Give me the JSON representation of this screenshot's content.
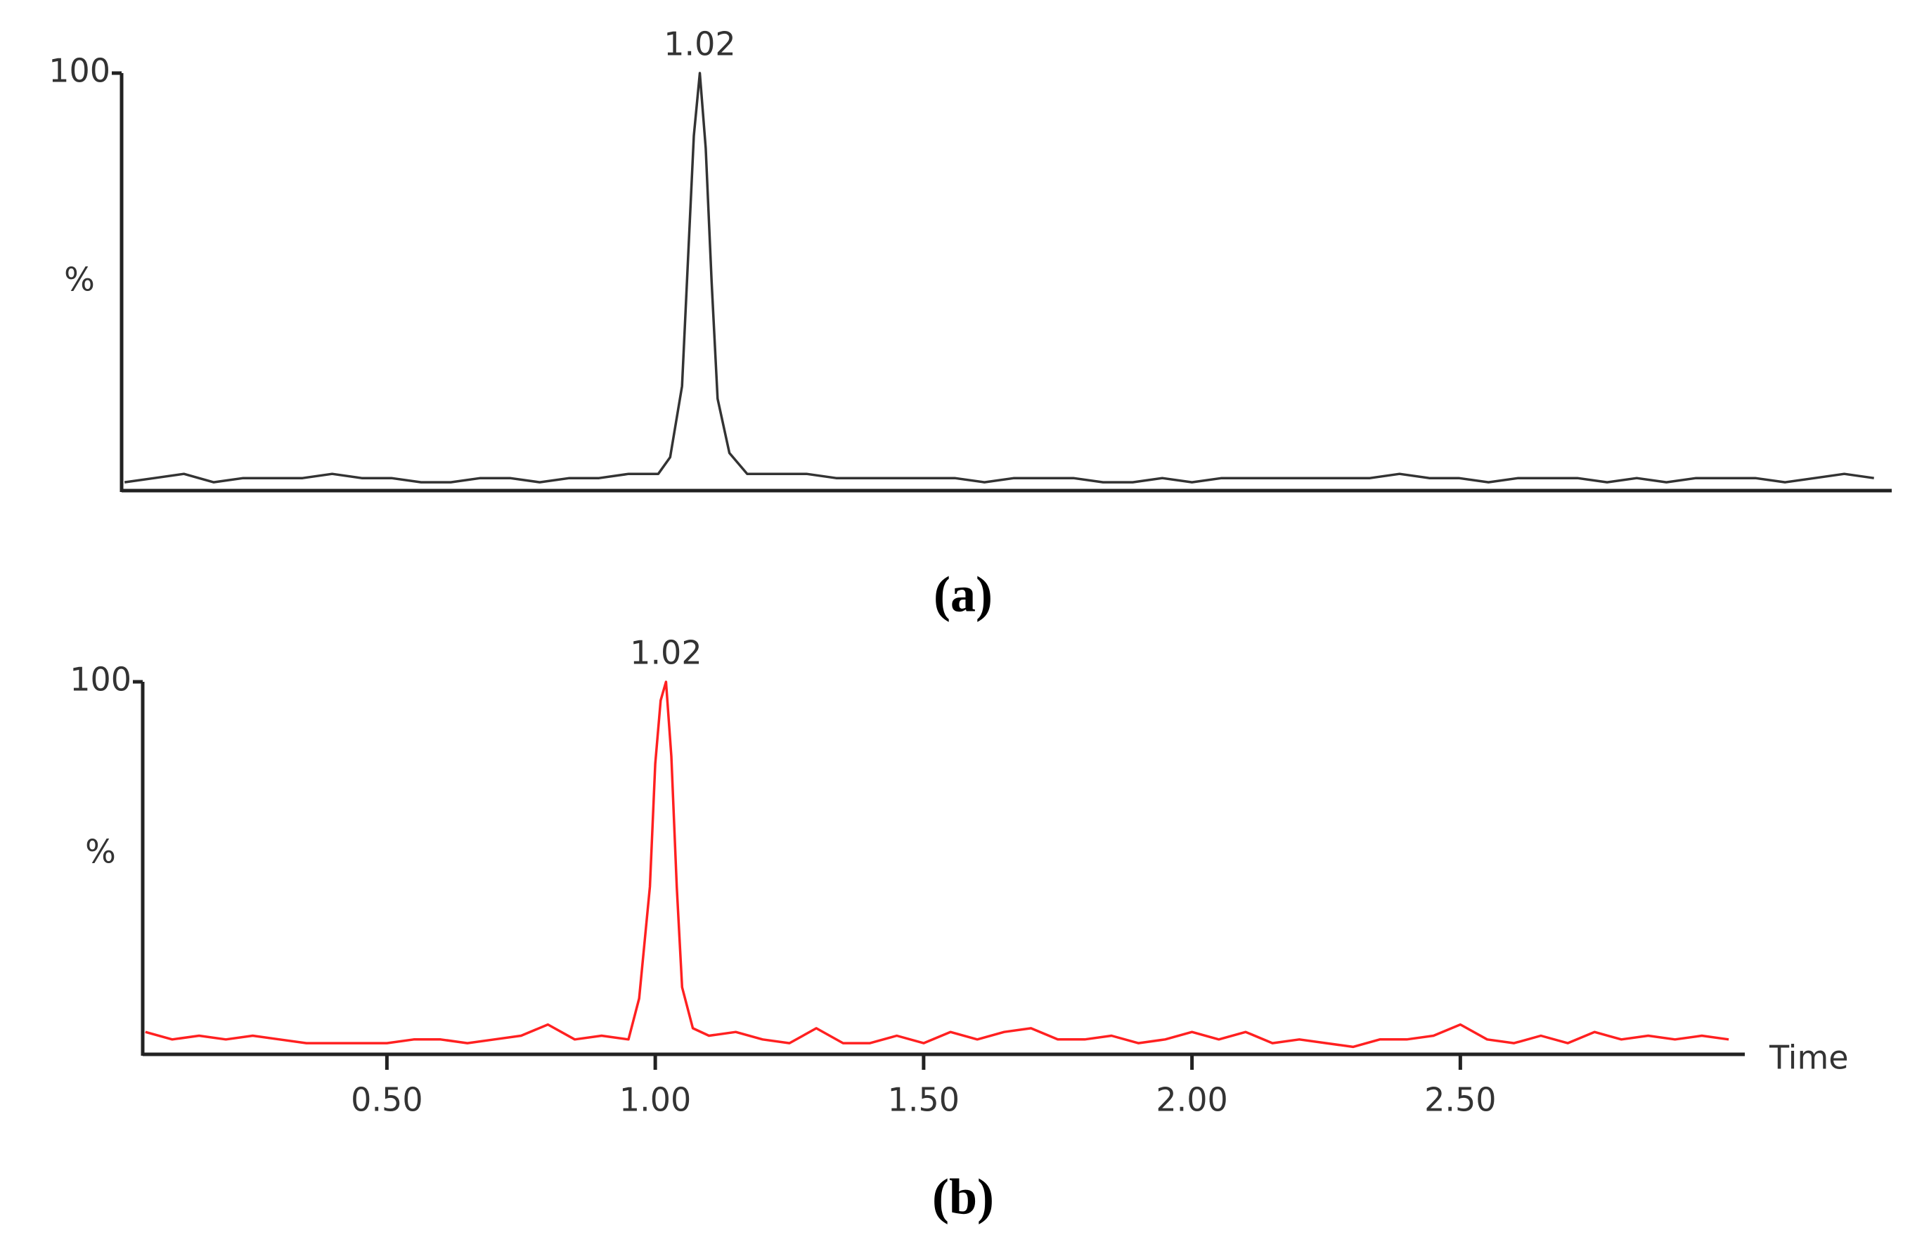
{
  "chart_data": [
    {
      "type": "line",
      "ylabel": "%",
      "peak_label": "1.02",
      "caption": "(a)",
      "color": "#333333",
      "xlim": [
        0.045,
        3.03
      ],
      "ylim": [
        0,
        100
      ],
      "yticks": [
        100
      ],
      "x": [
        0.05,
        0.1,
        0.15,
        0.2,
        0.25,
        0.3,
        0.35,
        0.4,
        0.45,
        0.5,
        0.55,
        0.6,
        0.65,
        0.7,
        0.75,
        0.8,
        0.85,
        0.9,
        0.95,
        0.97,
        0.99,
        1.0,
        1.01,
        1.02,
        1.03,
        1.04,
        1.05,
        1.07,
        1.1,
        1.15,
        1.2,
        1.25,
        1.3,
        1.35,
        1.4,
        1.45,
        1.5,
        1.55,
        1.6,
        1.65,
        1.7,
        1.75,
        1.8,
        1.85,
        1.9,
        1.95,
        2.0,
        2.05,
        2.1,
        2.15,
        2.2,
        2.25,
        2.3,
        2.35,
        2.4,
        2.45,
        2.5,
        2.55,
        2.6,
        2.65,
        2.7,
        2.75,
        2.8,
        2.85,
        2.9,
        2.95,
        3.0
      ],
      "values": [
        2,
        3,
        4,
        2,
        3,
        3,
        3,
        4,
        3,
        3,
        2,
        2,
        3,
        3,
        2,
        3,
        3,
        4,
        4,
        8,
        25,
        55,
        85,
        100,
        82,
        50,
        22,
        9,
        4,
        4,
        4,
        3,
        3,
        3,
        3,
        3,
        2,
        3,
        3,
        3,
        2,
        2,
        3,
        2,
        3,
        3,
        3,
        3,
        3,
        3,
        4,
        3,
        3,
        2,
        3,
        3,
        3,
        2,
        3,
        2,
        3,
        3,
        3,
        2,
        3,
        4,
        3
      ]
    },
    {
      "type": "line",
      "ylabel": "%",
      "xlabel": "Time",
      "peak_label": "1.02",
      "caption": "(b)",
      "color": "#ff2020",
      "xlim": [
        0.045,
        3.03
      ],
      "ylim": [
        0,
        100
      ],
      "yticks": [
        100
      ],
      "xticks": [
        {
          "value": 0.5,
          "label": "0.50"
        },
        {
          "value": 1.0,
          "label": "1.00"
        },
        {
          "value": 1.5,
          "label": "1.50"
        },
        {
          "value": 2.0,
          "label": "2.00"
        },
        {
          "value": 2.5,
          "label": "2.50"
        }
      ],
      "x": [
        0.05,
        0.1,
        0.15,
        0.2,
        0.25,
        0.3,
        0.35,
        0.4,
        0.45,
        0.5,
        0.55,
        0.6,
        0.65,
        0.7,
        0.75,
        0.8,
        0.85,
        0.9,
        0.95,
        0.97,
        0.99,
        1.0,
        1.01,
        1.02,
        1.03,
        1.04,
        1.05,
        1.07,
        1.1,
        1.15,
        1.2,
        1.25,
        1.3,
        1.35,
        1.4,
        1.45,
        1.5,
        1.55,
        1.6,
        1.65,
        1.7,
        1.75,
        1.8,
        1.85,
        1.9,
        1.95,
        2.0,
        2.05,
        2.1,
        2.15,
        2.2,
        2.25,
        2.3,
        2.35,
        2.4,
        2.45,
        2.5,
        2.55,
        2.6,
        2.65,
        2.7,
        2.75,
        2.8,
        2.85,
        2.9,
        2.95,
        3.0
      ],
      "values": [
        6,
        4,
        5,
        4,
        5,
        4,
        3,
        3,
        3,
        3,
        4,
        4,
        3,
        4,
        5,
        8,
        4,
        5,
        4,
        15,
        45,
        78,
        95,
        100,
        80,
        45,
        18,
        7,
        5,
        6,
        4,
        3,
        7,
        3,
        3,
        5,
        3,
        6,
        4,
        6,
        7,
        4,
        4,
        5,
        3,
        4,
        6,
        4,
        6,
        3,
        4,
        3,
        2,
        4,
        4,
        5,
        8,
        4,
        3,
        5,
        3,
        6,
        4,
        5,
        4,
        5,
        4
      ]
    }
  ]
}
